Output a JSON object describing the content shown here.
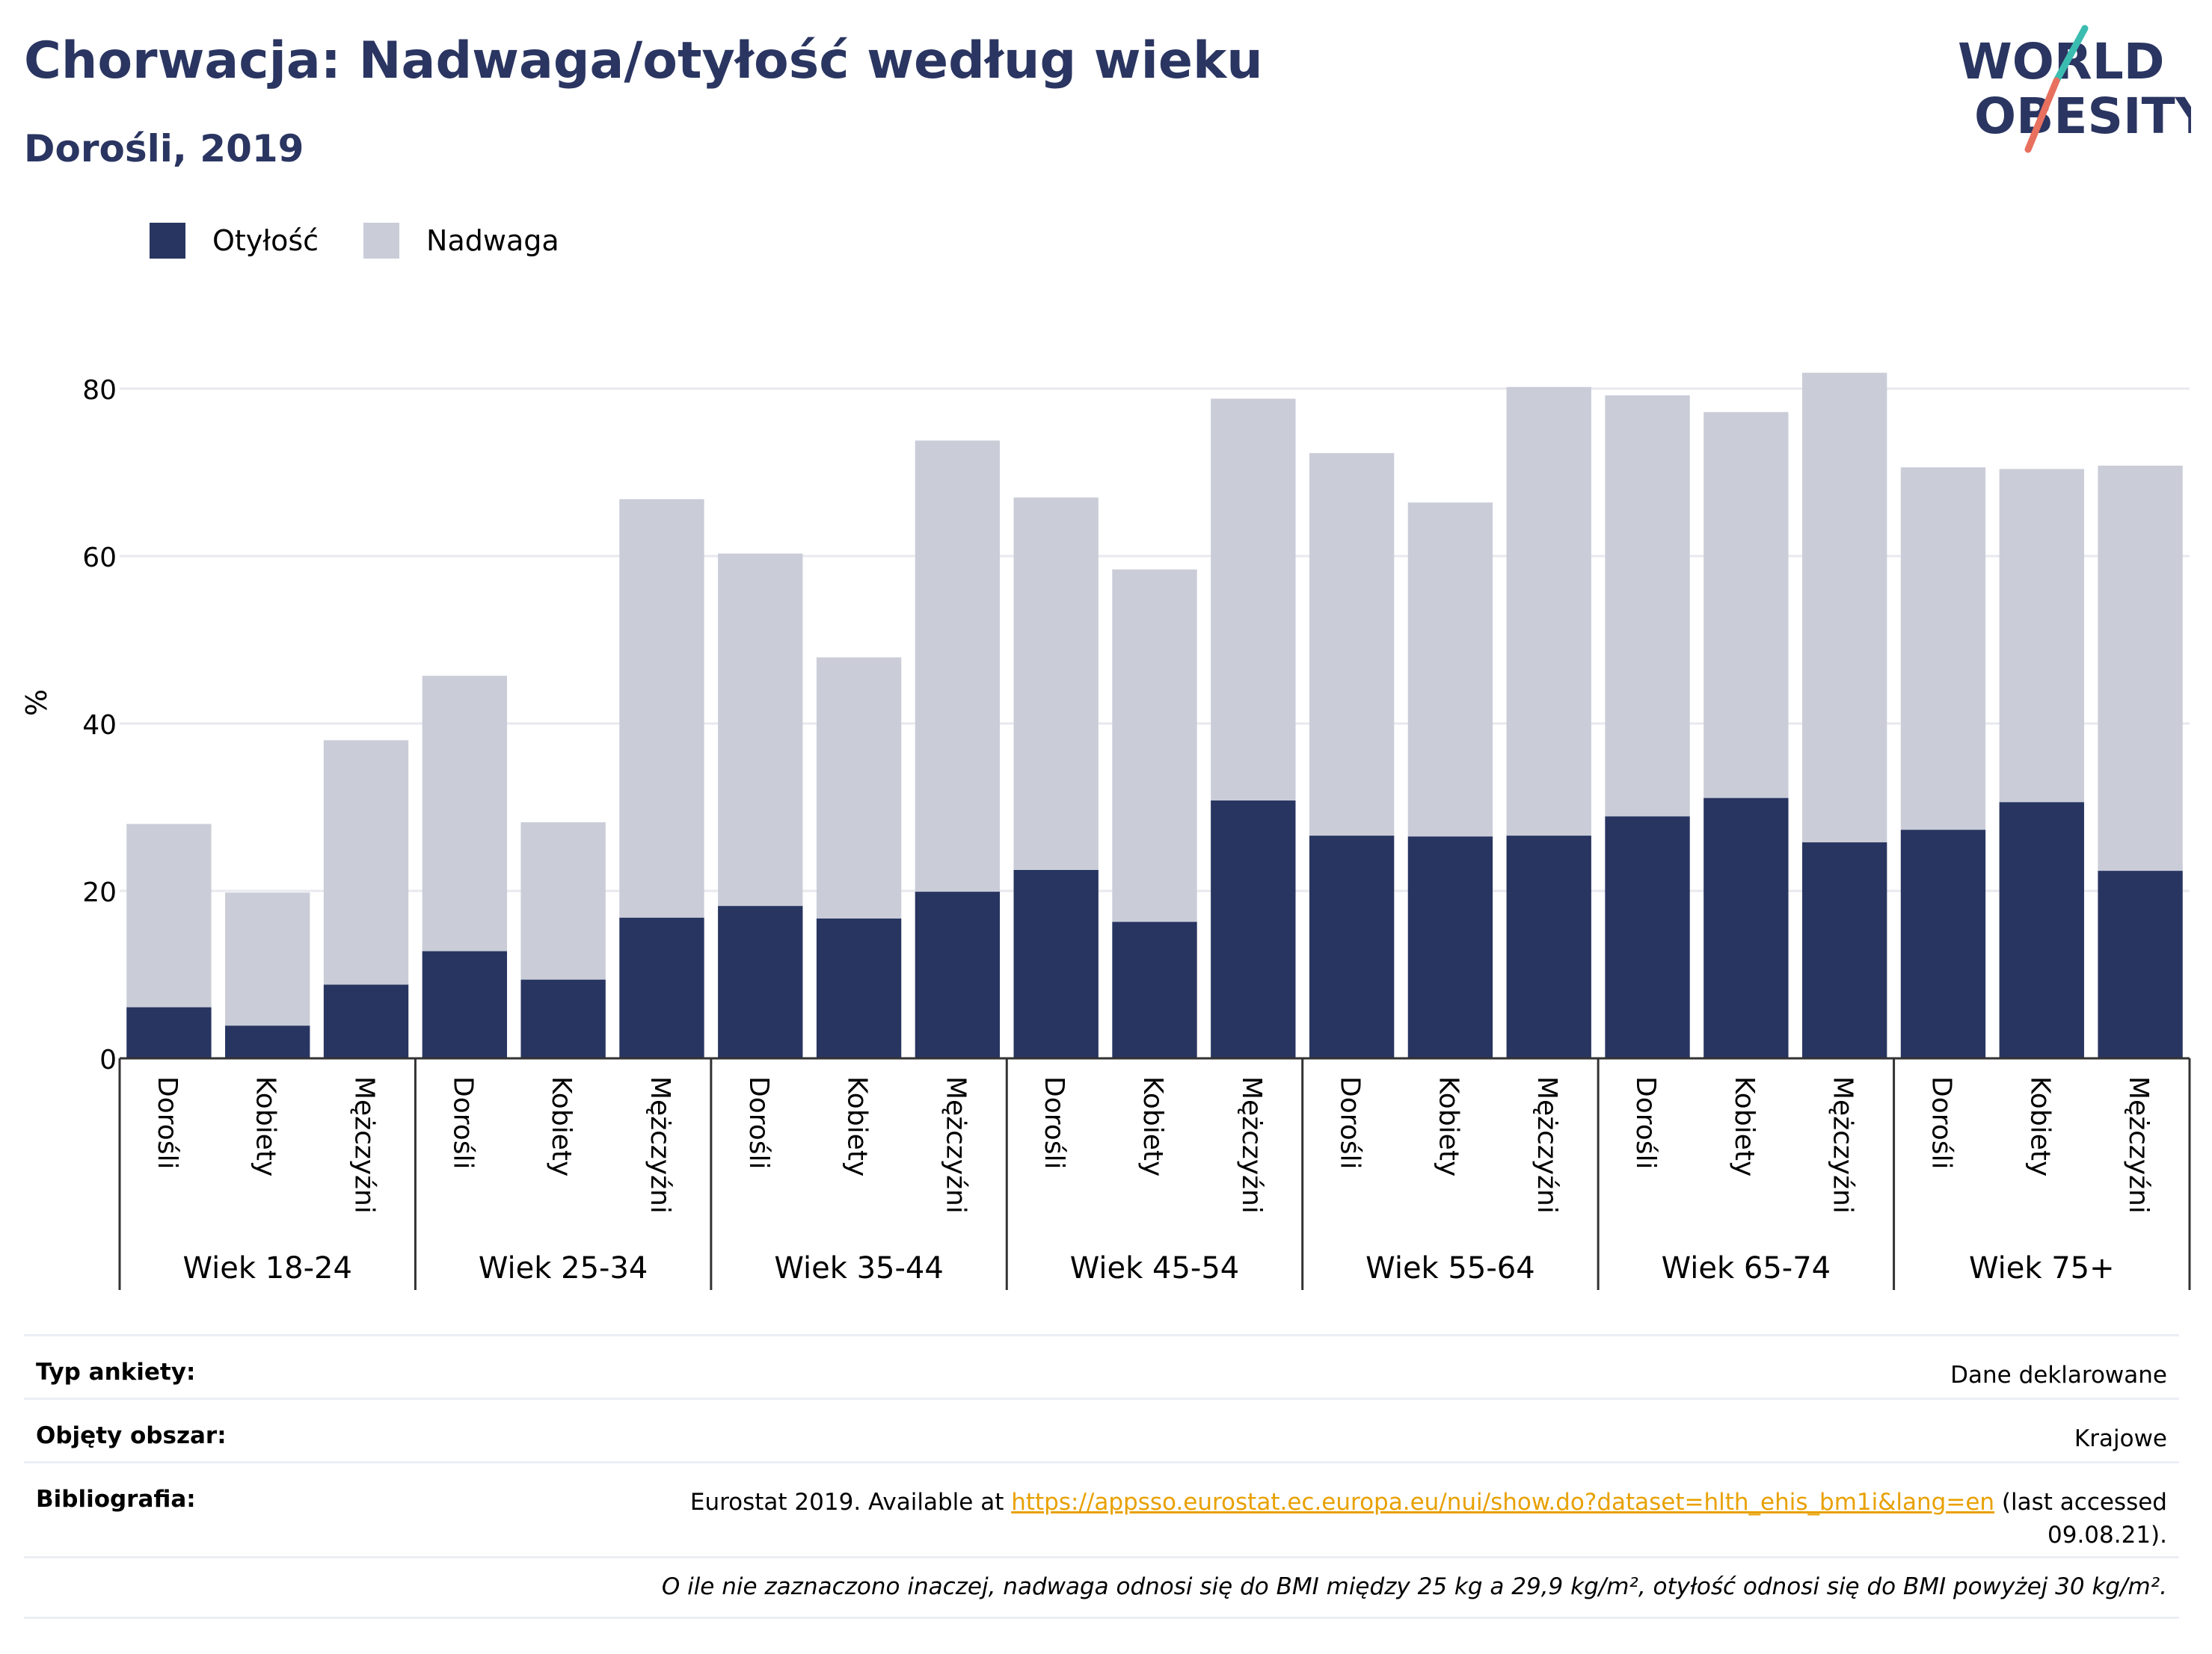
{
  "title": "Chorwacja: Nadwaga/otyłość według wieku",
  "subtitle": "Dorośli, 2019",
  "logo": {
    "line1": "WORLD",
    "line2": "OBESITY"
  },
  "colors": {
    "obesity": "#283561",
    "overweight": "#cacdd8",
    "title": "#2a3561",
    "link": "#e8a000"
  },
  "chart_data": {
    "type": "bar",
    "stacked": true,
    "groups": [
      "Wiek 18-24",
      "Wiek 25-34",
      "Wiek 35-44",
      "Wiek 45-54",
      "Wiek 55-64",
      "Wiek 65-74",
      "Wiek 75+"
    ],
    "subcategories": [
      "Dorośli",
      "Kobiety",
      "Mężczyźni"
    ],
    "series": [
      {
        "name": "Otyłość",
        "values": [
          6.1,
          3.9,
          8.8,
          12.8,
          9.4,
          16.8,
          18.2,
          16.7,
          19.9,
          22.5,
          16.3,
          30.8,
          26.6,
          26.5,
          26.6,
          28.9,
          31.1,
          25.8,
          27.3,
          30.6,
          22.4
        ]
      },
      {
        "name": "Nadwaga",
        "values": [
          21.9,
          15.9,
          29.2,
          32.9,
          18.8,
          50.0,
          42.1,
          31.2,
          53.9,
          44.5,
          42.1,
          48.0,
          45.7,
          39.9,
          53.6,
          50.3,
          46.1,
          56.1,
          43.3,
          39.8,
          48.4
        ]
      }
    ],
    "ylabel": "%",
    "ylim": [
      0,
      90
    ],
    "yticks": [
      0,
      20,
      40,
      60,
      80
    ],
    "grid": true,
    "legend_position": "top-left"
  },
  "table": {
    "survey_label": "Typ ankiety:",
    "survey_value": "Dane deklarowane",
    "area_label": "Objęty obszar:",
    "area_value": "Krajowe",
    "biblio_label": "Bibliografia:",
    "biblio_prefix": "Eurostat 2019. Available at ",
    "biblio_link": "https://appsso.eurostat.ec.europa.eu/nui/show.do?dataset=hlth_ehis_bm1i&lang=en",
    "biblio_suffix": " (last accessed",
    "biblio_date": "09.08.21).",
    "note": "O ile nie zaznaczono inaczej, nadwaga odnosi się do BMI między 25 kg a 29,9 kg/m², otyłość odnosi się do BMI powyżej 30 kg/m²."
  }
}
